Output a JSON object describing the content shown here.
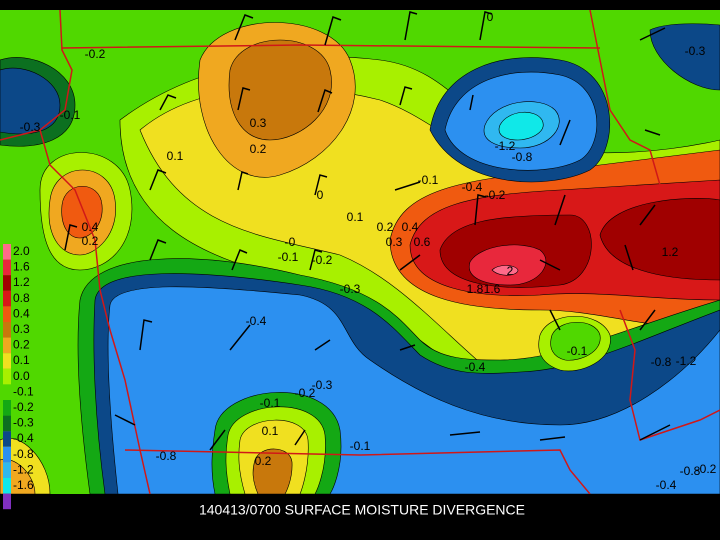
{
  "caption": "140413/0700 SURFACE MOISTURE DIVERGENCE",
  "legend": {
    "labels": [
      "2.0",
      "1.6",
      "1.2",
      "0.8",
      "0.4",
      "0.3",
      "0.2",
      "0.1",
      "0.0",
      "-0.1",
      "-0.2",
      "-0.3",
      "-0.4",
      "-0.8",
      "-1.2",
      "-1.6"
    ],
    "colors": [
      "#ff6a8a",
      "#e8283c",
      "#a00000",
      "#d81818",
      "#f05a10",
      "#c8780c",
      "#f0a820",
      "#f0e020",
      "#a8f000",
      "#50d800",
      "#14a814",
      "#0c7020",
      "#0c4888",
      "#2c90f0",
      "#30b8f0",
      "#10e8e8",
      "#8030c0"
    ]
  },
  "contour_labels": [
    "-0.2",
    "-0.3",
    "-0.1",
    "-0.3",
    "0.3",
    "0.2",
    "0.1",
    "-1.2",
    "-0.8",
    "-0.1",
    "-0.4",
    "-0.2",
    "0",
    "0",
    "0.1",
    "0.2",
    "0.4",
    "0.3",
    "0.6",
    "-0",
    "-0.1",
    "-0.2",
    "0.4",
    "0.2",
    "-0.3",
    "-0.4",
    "1.2",
    "2",
    "1.8",
    "1.6",
    "-0.1",
    "-0.8",
    "-1.2",
    "-0.4",
    "-0.3",
    "-0.2",
    "-0.1",
    "0.1",
    "0.2",
    "-0.1",
    "-0.8",
    "-0.2",
    "-0.4",
    "-0.8"
  ]
}
